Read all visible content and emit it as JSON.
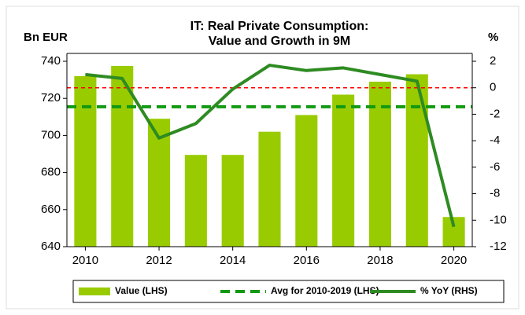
{
  "chart_data": {
    "type": "bar_line",
    "title": "IT: Real Private Consumption:",
    "subtitle": "Value and Growth in 9M",
    "y_label": "Bn EUR",
    "y2_label": "%",
    "x": [
      2010,
      2011,
      2012,
      2013,
      2014,
      2015,
      2016,
      2017,
      2018,
      2019,
      2020
    ],
    "xlim": [
      2009.5,
      2020.5
    ],
    "xticks": [
      2010,
      2012,
      2014,
      2016,
      2018,
      2020
    ],
    "ylim": [
      640,
      740
    ],
    "yticks": [
      640,
      660,
      680,
      700,
      720,
      740
    ],
    "y2lim": [
      -12,
      2
    ],
    "y2ticks": [
      -12,
      -10,
      -8,
      -6,
      -4,
      -2,
      0,
      2
    ],
    "zero_line": {
      "value": 0,
      "axis": "y2",
      "color": "#ff0000"
    },
    "series": [
      {
        "name": "Value (LHS)",
        "type": "bar",
        "color": "#99cc00",
        "values": [
          732,
          737.5,
          709,
          689.5,
          689.5,
          702,
          711,
          722,
          729,
          733,
          656
        ]
      },
      {
        "name": "Avg for 2010-2019 (LHS)",
        "type": "hline",
        "color": "#119911",
        "value": 715.5
      },
      {
        "name": "% YoY (RHS)",
        "type": "line",
        "color": "#2e8b22",
        "axis": "y2",
        "values": [
          1.0,
          0.7,
          -3.8,
          -2.7,
          -0.1,
          1.7,
          1.3,
          1.5,
          1.0,
          0.5,
          -10.5
        ]
      }
    ],
    "legend": "bottom"
  }
}
